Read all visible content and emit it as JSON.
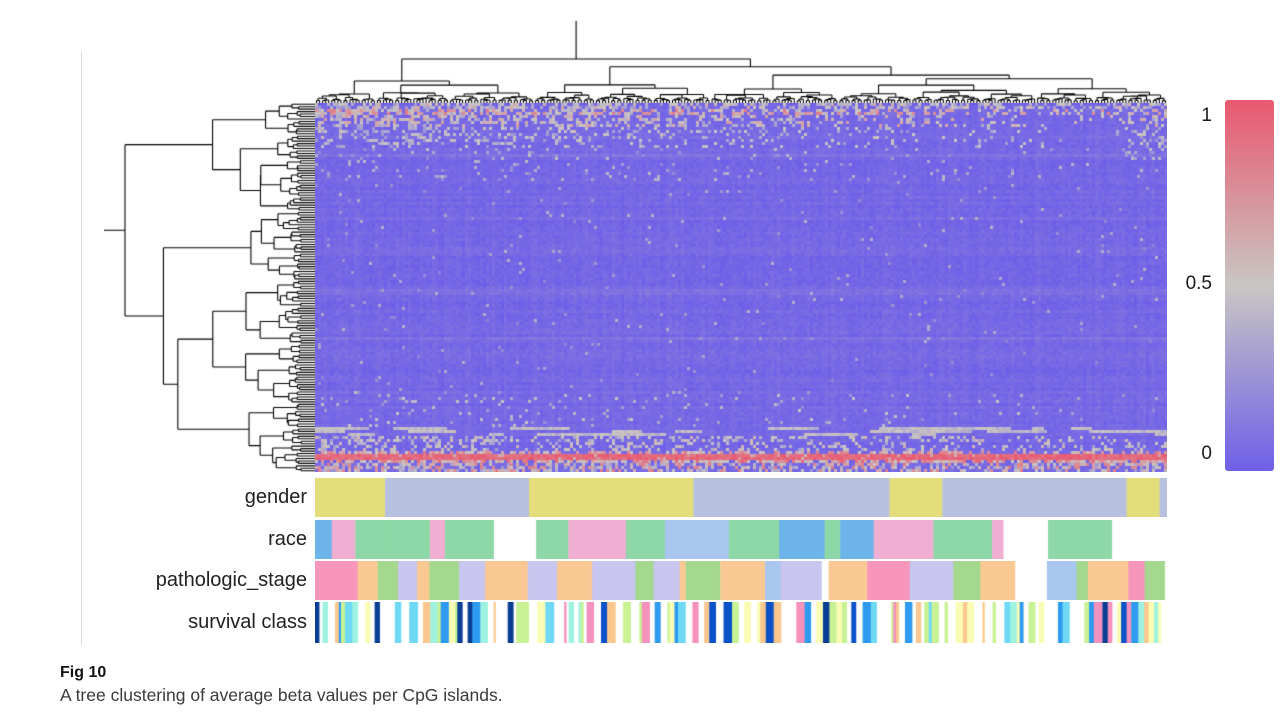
{
  "figure": {
    "label": "Fig 10",
    "caption": "A tree clustering of average beta values per CpG islands."
  },
  "colorbar": {
    "ticks": [
      "1",
      "0.5",
      "0"
    ]
  },
  "chart_data": {
    "type": "heatmap",
    "title": "",
    "value_name": "average beta value per CpG island",
    "clustering": {
      "rows": true,
      "columns": true
    },
    "colorbar_range": [
      0,
      1
    ],
    "colorbar_ticks": [
      0,
      0.5,
      1
    ],
    "colormap_stops": [
      {
        "t": 0,
        "color": "#6f5fe8"
      },
      {
        "t": 0.5,
        "color": "#c9c6c3"
      },
      {
        "t": 1,
        "color": "#e9596f"
      }
    ],
    "pattern_summary": "Body of heatmap is low beta (~0.05, blue-purple). Speckled mid/high values (0.25-0.85) across the top ~15 rows, densest on the left and at far right edge. Light gray streaky rows near the bottom, a solid high-beta red band (0.86-1.0) three rows from the bottom, and mixed speckle on the last rows.",
    "grid": {
      "rows": 123,
      "cols": 284,
      "cell": 3
    },
    "seed": 1337,
    "body": {
      "base": 0.045,
      "noise": 0.03,
      "row_jitter": 0.022,
      "col_jitter": 0.018,
      "light_rows": [
        11,
        17,
        38,
        62,
        63,
        78,
        96,
        101
      ],
      "light_row_boost": 0.04
    },
    "right_edge_speckle": {
      "rows": 19,
      "col_frac": 0.95,
      "p": 0.3,
      "v0": 0.35,
      "v1": 0.8
    },
    "bands": [
      {
        "r0": 0,
        "r1": 2,
        "type": "speckle",
        "p": 0.5,
        "v0": 0.25,
        "v1": 0.65,
        "bias": 0.1
      },
      {
        "r0": 2,
        "r1": 4,
        "type": "speckle",
        "p": 0.45,
        "v0": 0.35,
        "v1": 0.85,
        "bias": 0.6
      },
      {
        "r0": 4,
        "r1": 8,
        "type": "speckle",
        "p": 0.3,
        "v0": 0.3,
        "v1": 0.7,
        "bias": 0.75
      },
      {
        "r0": 8,
        "r1": 15,
        "type": "speckle",
        "p": 0.16,
        "v0": 0.25,
        "v1": 0.55,
        "bias": 0.85
      },
      {
        "r0": 15,
        "r1": 26,
        "type": "speckle",
        "p": 0.05,
        "v0": 0.2,
        "v1": 0.45,
        "bias": 0.7
      },
      {
        "r0": 26,
        "r1": 96,
        "type": "speckle",
        "p": 0.012,
        "v0": 0.18,
        "v1": 0.4,
        "bias": 0.25
      },
      {
        "r0": 96,
        "r1": 108,
        "type": "speckle",
        "p": 0.045,
        "v0": 0.22,
        "v1": 0.5,
        "bias": 0.55
      },
      {
        "r0": 108,
        "r1": 111,
        "type": "streaks",
        "p": 0.45,
        "v0": 0.35,
        "v1": 0.55
      },
      {
        "r0": 111,
        "r1": 116,
        "type": "speckle",
        "p": 0.28,
        "v0": 0.3,
        "v1": 0.6,
        "bias": 0.35
      },
      {
        "r0": 116,
        "r1": 117,
        "type": "speckle",
        "p": 0.6,
        "v0": 0.45,
        "v1": 0.85,
        "bias": 0.25
      },
      {
        "r0": 117,
        "r1": 119,
        "type": "solid",
        "v0": 0.86,
        "v1": 1.0
      },
      {
        "r0": 119,
        "r1": 120,
        "type": "speckle",
        "p": 0.8,
        "v0": 0.4,
        "v1": 0.95,
        "bias": 0
      },
      {
        "r0": 120,
        "r1": 123,
        "type": "speckle",
        "p": 0.5,
        "v0": 0.25,
        "v1": 0.85,
        "bias": 0.1
      }
    ],
    "col_dendrogram": {
      "leaves": 280,
      "seed": 7,
      "exponent": 0.55,
      "root_depth": 41,
      "stem_end": 3
    },
    "row_dendrogram": {
      "leaves": 150,
      "seed": 23,
      "exponent": 0.55,
      "root_depth": 21,
      "stem_end": 0
    },
    "annotation_tracks": [
      {
        "label": "gender",
        "seed": 101,
        "min_w": 5,
        "max_w": 200,
        "skew": 0.55,
        "palette": [
          {
            "color": "#b7c1df",
            "w": 0.52
          },
          {
            "color": "#e4dd7c",
            "w": 0.48
          }
        ]
      },
      {
        "label": "race",
        "seed": 202,
        "min_w": 4,
        "max_w": 70,
        "skew": 0.8,
        "palette": [
          {
            "color": "#8ed8a7",
            "w": 0.42
          },
          {
            "color": "#f1aed3",
            "w": 0.38
          },
          {
            "color": "#a9c6ee",
            "w": 0.1
          },
          {
            "color": "#ffffff",
            "w": 0.05
          },
          {
            "color": "#6db4ea",
            "w": 0.05
          }
        ]
      },
      {
        "label": "pathologic_stage",
        "seed": 303,
        "min_w": 3,
        "max_w": 45,
        "skew": 0.85,
        "palette": [
          {
            "color": "#c8c5ee",
            "w": 0.4
          },
          {
            "color": "#fac993",
            "w": 0.22
          },
          {
            "color": "#a3d88e",
            "w": 0.16
          },
          {
            "color": "#f795ba",
            "w": 0.08
          },
          {
            "color": "#ffffff",
            "w": 0.07
          },
          {
            "color": "#a9c6ee",
            "w": 0.07
          }
        ]
      },
      {
        "label": "survival class",
        "seed": 404,
        "min_w": 2,
        "max_w": 9,
        "skew": 1.0,
        "palette": [
          {
            "color": "#ffffff",
            "w": 0.4
          },
          {
            "color": "#c9f295",
            "w": 0.16
          },
          {
            "color": "#fafcb4",
            "w": 0.06
          },
          {
            "color": "#9ef2e0",
            "w": 0.07
          },
          {
            "color": "#6fd9f5",
            "w": 0.05
          },
          {
            "color": "#2f9bf0",
            "w": 0.08
          },
          {
            "color": "#0b51c9",
            "w": 0.07
          },
          {
            "color": "#0a3e95",
            "w": 0.03
          },
          {
            "color": "#f491bd",
            "w": 0.04
          },
          {
            "color": "#fac88e",
            "w": 0.04
          }
        ]
      }
    ]
  }
}
